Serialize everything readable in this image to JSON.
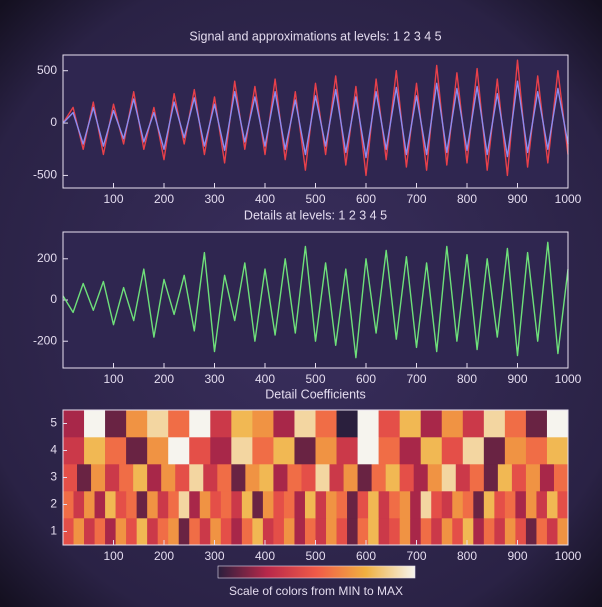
{
  "chart_data": [
    {
      "type": "line",
      "title": "Signal and approximations at levels: 1 2 3 4 5",
      "x": [
        0,
        20,
        40,
        60,
        80,
        100,
        120,
        140,
        160,
        180,
        200,
        220,
        240,
        260,
        280,
        300,
        320,
        340,
        360,
        380,
        400,
        420,
        440,
        460,
        480,
        500,
        520,
        540,
        560,
        580,
        600,
        620,
        640,
        660,
        680,
        700,
        720,
        740,
        760,
        780,
        800,
        820,
        840,
        860,
        880,
        900,
        920,
        940,
        960,
        980,
        1000
      ],
      "series": [
        {
          "color": "#e8404a",
          "values": [
            0,
            150,
            -250,
            200,
            -300,
            180,
            -200,
            300,
            -250,
            150,
            -350,
            280,
            -200,
            320,
            -300,
            250,
            -380,
            400,
            -250,
            350,
            -300,
            420,
            -350,
            300,
            -450,
            380,
            -300,
            450,
            -400,
            350,
            -500,
            420,
            -350,
            500,
            -420,
            380,
            -450,
            550,
            -400,
            480,
            -380,
            520,
            -450,
            420,
            -500,
            600,
            -420,
            450,
            -380,
            500,
            -300
          ]
        },
        {
          "color": "#8c8cf0",
          "values": [
            0,
            100,
            -200,
            150,
            -220,
            120,
            -150,
            230,
            -180,
            100,
            -250,
            200,
            -140,
            240,
            -220,
            180,
            -260,
            300,
            -180,
            250,
            -220,
            300,
            -250,
            220,
            -300,
            260,
            -220,
            320,
            -280,
            250,
            -330,
            300,
            -250,
            340,
            -300,
            260,
            -300,
            380,
            -280,
            330,
            -260,
            350,
            -300,
            280,
            -320,
            400,
            -280,
            300,
            -250,
            330,
            -200
          ]
        }
      ],
      "xlim": [
        0,
        1000
      ],
      "xticks": [
        100,
        200,
        300,
        400,
        500,
        600,
        700,
        800,
        900,
        1000
      ],
      "ylim": [
        -620,
        650
      ],
      "yticks": [
        -500,
        0,
        500
      ]
    },
    {
      "type": "line",
      "title": "Details at levels: 1 2 3 4 5",
      "x": [
        0,
        20,
        40,
        60,
        80,
        100,
        120,
        140,
        160,
        180,
        200,
        220,
        240,
        260,
        280,
        300,
        320,
        340,
        360,
        380,
        400,
        420,
        440,
        460,
        480,
        500,
        520,
        540,
        560,
        580,
        600,
        620,
        640,
        660,
        680,
        700,
        720,
        740,
        760,
        780,
        800,
        820,
        840,
        860,
        880,
        900,
        920,
        940,
        960,
        980,
        1000
      ],
      "series": [
        {
          "color": "#6ee07a",
          "values": [
            20,
            -60,
            80,
            -50,
            90,
            -120,
            60,
            -100,
            150,
            -180,
            100,
            -70,
            120,
            -150,
            230,
            -250,
            120,
            -100,
            180,
            -200,
            150,
            -170,
            200,
            -160,
            260,
            -200,
            180,
            -220,
            150,
            -280,
            200,
            -160,
            240,
            -190,
            210,
            -230,
            180,
            -250,
            260,
            -200,
            220,
            -240,
            200,
            -180,
            250,
            -270,
            230,
            -200,
            280,
            -260,
            150
          ]
        }
      ],
      "xlim": [
        0,
        1000
      ],
      "xticks": [
        100,
        200,
        300,
        400,
        500,
        600,
        700,
        800,
        900,
        1000
      ],
      "ylim": [
        -330,
        330
      ],
      "yticks": [
        -200,
        0,
        200
      ]
    },
    {
      "type": "heatmap",
      "title": "Detail Coefficients",
      "xlim": [
        0,
        1000
      ],
      "xticks": [
        100,
        200,
        300,
        400,
        500,
        600,
        700,
        800,
        900,
        1000
      ],
      "yticks": [
        1,
        2,
        3,
        4,
        5
      ],
      "values": [
        [
          4,
          6,
          3,
          5,
          2,
          6,
          4,
          7,
          3,
          5,
          6,
          1,
          5,
          3,
          6,
          4,
          2,
          5,
          7,
          3,
          4,
          6,
          2,
          5,
          3,
          6,
          4,
          1,
          5,
          7,
          3,
          4,
          6,
          2,
          5,
          3,
          6,
          4,
          7,
          2,
          5,
          3,
          6,
          4,
          1,
          5,
          3,
          6
        ],
        [
          5,
          3,
          6,
          2,
          7,
          4,
          5,
          1,
          6,
          3,
          5,
          8,
          2,
          6,
          4,
          5,
          3,
          7,
          1,
          6,
          4,
          5,
          2,
          7,
          3,
          6,
          5,
          1,
          4,
          7,
          3,
          5,
          6,
          2,
          8,
          4,
          3,
          6,
          5,
          1,
          7,
          4,
          5,
          2,
          6,
          3,
          7,
          4
        ],
        [
          4,
          1,
          6,
          3,
          5,
          7,
          2,
          6,
          4,
          8,
          3,
          5,
          1,
          6,
          7,
          2,
          5,
          4,
          8,
          3,
          6,
          1,
          5,
          7,
          4,
          2,
          6,
          8,
          3,
          5,
          1,
          7,
          4,
          6,
          2,
          5
        ],
        [
          3,
          7,
          5,
          1,
          6,
          9,
          4,
          2,
          8,
          5,
          7,
          1,
          6,
          3,
          9,
          5,
          2,
          7,
          4,
          8,
          1,
          6,
          5,
          7
        ],
        [
          2,
          9,
          1,
          6,
          8,
          5,
          9,
          3,
          7,
          6,
          2,
          8,
          5,
          0,
          9,
          4,
          7,
          2,
          6,
          3,
          8,
          5,
          1,
          9
        ]
      ],
      "clim": [
        0,
        9
      ],
      "colormap": [
        "#2a1f3d",
        "#b8284a",
        "#f05a48",
        "#f0b040",
        "#f6f4ee"
      ],
      "colorbar_label": "Scale of colors from MIN to MAX"
    }
  ]
}
